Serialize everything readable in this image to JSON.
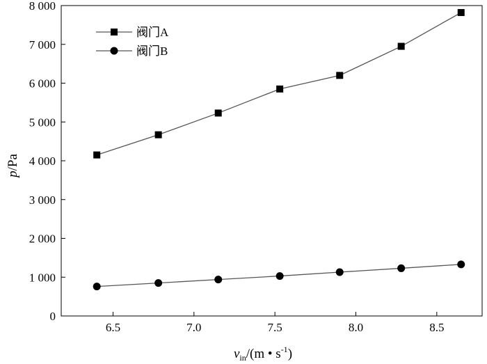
{
  "chart_data": {
    "type": "line",
    "x": [
      6.4,
      6.78,
      7.15,
      7.53,
      7.9,
      8.28,
      8.65
    ],
    "series": [
      {
        "name": "阀门A",
        "marker": "square",
        "color": "#000000",
        "line_color": "#555555",
        "values": [
          4150,
          4670,
          5230,
          5850,
          6200,
          6950,
          7820
        ]
      },
      {
        "name": "阀门B",
        "marker": "circle",
        "color": "#000000",
        "line_color": "#555555",
        "values": [
          760,
          850,
          940,
          1030,
          1130,
          1230,
          1330
        ]
      }
    ],
    "xlabel": {
      "var": "v",
      "sub": "in",
      "unit": "/(m • s",
      "sup": "-1",
      "close": ")"
    },
    "ylabel": {
      "var": "p",
      "unit": "/Pa"
    },
    "xlim": [
      6.18,
      8.78
    ],
    "ylim": [
      0,
      8000
    ],
    "xticks": [
      6.5,
      7.0,
      7.5,
      8.0,
      8.5
    ],
    "xtick_labels": [
      "6.5",
      "7.0",
      "7.5",
      "8.0",
      "8.5"
    ],
    "yticks": [
      0,
      1000,
      2000,
      3000,
      4000,
      5000,
      6000,
      7000,
      8000
    ],
    "ytick_labels": [
      "0",
      "1 000",
      "2 000",
      "3 000",
      "4 000",
      "5 000",
      "6 000",
      "7 000",
      "8 000"
    ],
    "grid": false,
    "legend_position": "top-left"
  }
}
